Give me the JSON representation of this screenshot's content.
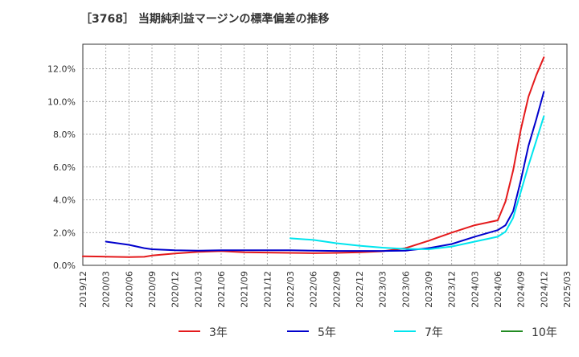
{
  "chart_data": {
    "type": "line",
    "title": "［3768］ 当期純利益マージンの標準偏差の推移",
    "xlabel": "",
    "ylabel": "",
    "x_ticks": [
      "2019/12",
      "2020/03",
      "2020/06",
      "2020/09",
      "2020/12",
      "2021/03",
      "2021/06",
      "2021/09",
      "2021/12",
      "2022/03",
      "2022/06",
      "2022/09",
      "2022/12",
      "2023/03",
      "2023/06",
      "2023/09",
      "2023/12",
      "2024/03",
      "2024/06",
      "2024/09",
      "2024/12",
      "2025/03"
    ],
    "y_ticks": [
      "0.0%",
      "2.0%",
      "4.0%",
      "6.0%",
      "8.0%",
      "10.0%",
      "12.0%"
    ],
    "ylim": [
      0,
      13.5
    ],
    "grid": true,
    "legend_position": "bottom",
    "series": [
      {
        "name": "3年",
        "color": "#e41a1c",
        "x": [
          "2019/12",
          "2020/03",
          "2020/06",
          "2020/08",
          "2020/09",
          "2020/12",
          "2021/03",
          "2021/06",
          "2021/09",
          "2021/12",
          "2022/03",
          "2022/06",
          "2022/09",
          "2022/12",
          "2023/03",
          "2023/06",
          "2023/09",
          "2023/12",
          "2024/03",
          "2024/06",
          "2024/07",
          "2024/08",
          "2024/09",
          "2024/10",
          "2024/11",
          "2024/12"
        ],
        "values": [
          0.55,
          0.53,
          0.5,
          0.52,
          0.6,
          0.72,
          0.82,
          0.87,
          0.8,
          0.78,
          0.76,
          0.74,
          0.76,
          0.8,
          0.86,
          1.05,
          1.5,
          2.0,
          2.45,
          2.75,
          3.9,
          5.8,
          8.3,
          10.3,
          11.6,
          12.7
        ]
      },
      {
        "name": "5年",
        "color": "#0000cc",
        "x": [
          "2020/03",
          "2020/06",
          "2020/08",
          "2020/09",
          "2020/12",
          "2021/03",
          "2021/06",
          "2021/09",
          "2021/12",
          "2022/03",
          "2022/06",
          "2022/09",
          "2022/12",
          "2023/03",
          "2023/06",
          "2023/09",
          "2023/12",
          "2024/03",
          "2024/06",
          "2024/07",
          "2024/08",
          "2024/09",
          "2024/10",
          "2024/11",
          "2024/12"
        ],
        "values": [
          1.45,
          1.25,
          1.05,
          0.98,
          0.92,
          0.9,
          0.92,
          0.92,
          0.92,
          0.92,
          0.9,
          0.88,
          0.88,
          0.88,
          0.9,
          1.05,
          1.3,
          1.75,
          2.15,
          2.45,
          3.3,
          5.2,
          7.3,
          8.9,
          10.6
        ]
      },
      {
        "name": "7年",
        "color": "#00e5ee",
        "x": [
          "2022/03",
          "2022/06",
          "2022/09",
          "2022/12",
          "2023/03",
          "2023/06",
          "2023/09",
          "2023/12",
          "2024/03",
          "2024/06",
          "2024/07",
          "2024/08",
          "2024/09",
          "2024/10",
          "2024/11",
          "2024/12"
        ],
        "values": [
          1.65,
          1.55,
          1.35,
          1.2,
          1.08,
          1.0,
          0.98,
          1.15,
          1.45,
          1.75,
          2.05,
          2.9,
          4.5,
          6.1,
          7.6,
          9.1
        ]
      },
      {
        "name": "10年",
        "color": "#228b22",
        "x": [],
        "values": []
      }
    ]
  }
}
